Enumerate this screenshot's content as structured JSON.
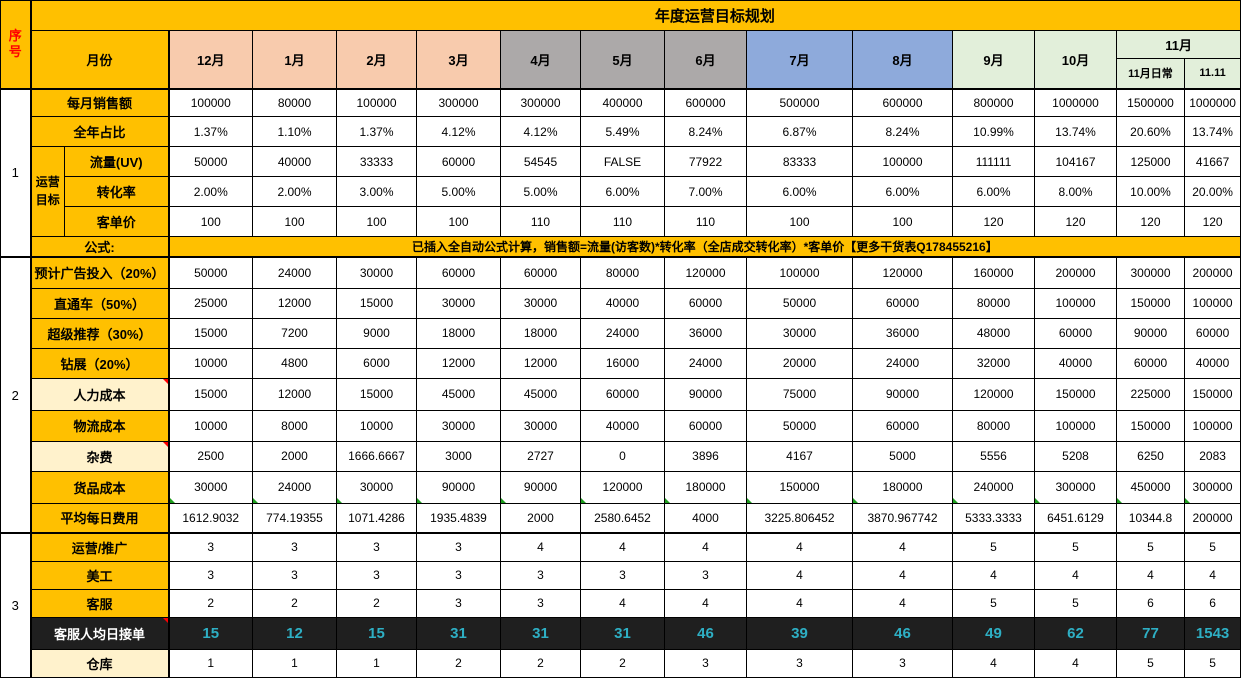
{
  "title": "年度运营目标规划",
  "serial_header": "序号",
  "month_column_header": "月份",
  "colors": {
    "header_orange": "#FFC000",
    "label_light_yellow": "#FFF2CC",
    "month_peach": "#F8CBAD",
    "month_gray": "#ACA9A9",
    "month_blue": "#8EAADB",
    "month_green": "#E2EFDA",
    "dark_row_bg": "#1F1F1F",
    "dark_row_value": "#2EAFC4",
    "serial_text_red": "#FF0000"
  },
  "months": [
    {
      "label": "12月",
      "theme": "month_peach"
    },
    {
      "label": "1月",
      "theme": "month_peach"
    },
    {
      "label": "2月",
      "theme": "month_peach"
    },
    {
      "label": "3月",
      "theme": "month_peach"
    },
    {
      "label": "4月",
      "theme": "month_gray"
    },
    {
      "label": "5月",
      "theme": "month_gray"
    },
    {
      "label": "6月",
      "theme": "month_gray"
    },
    {
      "label": "7月",
      "theme": "month_blue"
    },
    {
      "label": "8月",
      "theme": "month_blue"
    },
    {
      "label": "9月",
      "theme": "month_green"
    },
    {
      "label": "10月",
      "theme": "month_green"
    },
    {
      "label": "11月",
      "theme": "month_green",
      "subs": [
        "11月日常",
        "11.11"
      ]
    }
  ],
  "row_groups": [
    {
      "serial": "1",
      "rows": [
        {
          "label": "每月销售额",
          "values": [
            "100000",
            "80000",
            "100000",
            "300000",
            "300000",
            "400000",
            "600000",
            "500000",
            "600000",
            "800000",
            "1000000",
            "1500000",
            "1000000"
          ]
        },
        {
          "label": "全年占比",
          "values": [
            "1.37%",
            "1.10%",
            "1.37%",
            "4.12%",
            "4.12%",
            "5.49%",
            "8.24%",
            "6.87%",
            "8.24%",
            "10.99%",
            "13.74%",
            "20.60%",
            "13.74%"
          ]
        },
        {
          "label": "流量(UV)",
          "vertical_label": "运营目标",
          "values": [
            "50000",
            "40000",
            "33333",
            "60000",
            "54545",
            "FALSE",
            "77922",
            "83333",
            "100000",
            "111111",
            "104167",
            "125000",
            "41667"
          ]
        },
        {
          "label": "转化率",
          "in_vertical": true,
          "values": [
            "2.00%",
            "2.00%",
            "3.00%",
            "5.00%",
            "5.00%",
            "6.00%",
            "7.00%",
            "6.00%",
            "6.00%",
            "6.00%",
            "8.00%",
            "10.00%",
            "20.00%"
          ]
        },
        {
          "label": "客单价",
          "in_vertical": true,
          "values": [
            "100",
            "100",
            "100",
            "100",
            "110",
            "110",
            "110",
            "100",
            "100",
            "120",
            "120",
            "120",
            "120"
          ]
        },
        {
          "label": "公式:",
          "merged_text": "已插入全自动公式计算，销售额=流量(访客数)*转化率（全店成交转化率）*客单价【更多干货表Q178455216】"
        }
      ]
    },
    {
      "serial": "2",
      "rows": [
        {
          "label": "预计广告投入（20%）",
          "values": [
            "50000",
            "24000",
            "30000",
            "60000",
            "60000",
            "80000",
            "120000",
            "100000",
            "120000",
            "160000",
            "200000",
            "300000",
            "200000"
          ]
        },
        {
          "label": "直通车（50%）",
          "values": [
            "25000",
            "12000",
            "15000",
            "30000",
            "30000",
            "40000",
            "60000",
            "50000",
            "60000",
            "80000",
            "100000",
            "150000",
            "100000"
          ]
        },
        {
          "label": "超级推荐（30%）",
          "values": [
            "15000",
            "7200",
            "9000",
            "18000",
            "18000",
            "24000",
            "36000",
            "30000",
            "36000",
            "48000",
            "60000",
            "90000",
            "60000"
          ]
        },
        {
          "label": "钻展（20%）",
          "values": [
            "10000",
            "4800",
            "6000",
            "12000",
            "12000",
            "16000",
            "24000",
            "20000",
            "24000",
            "32000",
            "40000",
            "60000",
            "40000"
          ]
        },
        {
          "label": "人力成本",
          "label_style": "yellow",
          "red_marker": true,
          "values": [
            "15000",
            "12000",
            "15000",
            "45000",
            "45000",
            "60000",
            "90000",
            "75000",
            "90000",
            "120000",
            "150000",
            "225000",
            "150000"
          ]
        },
        {
          "label": "物流成本",
          "values": [
            "10000",
            "8000",
            "10000",
            "30000",
            "30000",
            "40000",
            "60000",
            "50000",
            "60000",
            "80000",
            "100000",
            "150000",
            "100000"
          ]
        },
        {
          "label": "杂费",
          "label_style": "yellow",
          "red_marker": true,
          "values": [
            "2500",
            "2000",
            "1666.6667",
            "3000",
            "2727",
            "0",
            "3896",
            "4167",
            "5000",
            "5556",
            "5208",
            "6250",
            "2083"
          ]
        },
        {
          "label": "货品成本",
          "green_markers": true,
          "values": [
            "30000",
            "24000",
            "30000",
            "90000",
            "90000",
            "120000",
            "180000",
            "150000",
            "180000",
            "240000",
            "300000",
            "450000",
            "300000"
          ]
        },
        {
          "label": "平均每日费用",
          "values": [
            "1612.9032",
            "774.19355",
            "1071.4286",
            "1935.4839",
            "2000",
            "2580.6452",
            "4000",
            "3225.806452",
            "3870.967742",
            "5333.3333",
            "6451.6129",
            "10344.8",
            "200000"
          ]
        }
      ]
    },
    {
      "serial": "3",
      "rows": [
        {
          "label": "运营/推广",
          "values": [
            "3",
            "3",
            "3",
            "3",
            "4",
            "4",
            "4",
            "4",
            "4",
            "5",
            "5",
            "5",
            "5"
          ]
        },
        {
          "label": "美工",
          "values": [
            "3",
            "3",
            "3",
            "3",
            "3",
            "3",
            "3",
            "4",
            "4",
            "4",
            "4",
            "4",
            "4"
          ]
        },
        {
          "label": "客服",
          "values": [
            "2",
            "2",
            "2",
            "3",
            "3",
            "4",
            "4",
            "4",
            "4",
            "5",
            "5",
            "6",
            "6"
          ]
        },
        {
          "label": "客服人均日接单",
          "row_style": "dark",
          "red_marker": true,
          "values": [
            "15",
            "12",
            "15",
            "31",
            "31",
            "31",
            "46",
            "39",
            "46",
            "49",
            "62",
            "77",
            "1543"
          ]
        },
        {
          "label": "仓库",
          "label_style": "yellow",
          "values": [
            "1",
            "1",
            "1",
            "2",
            "2",
            "2",
            "3",
            "3",
            "3",
            "4",
            "4",
            "5",
            "5"
          ]
        }
      ]
    }
  ]
}
